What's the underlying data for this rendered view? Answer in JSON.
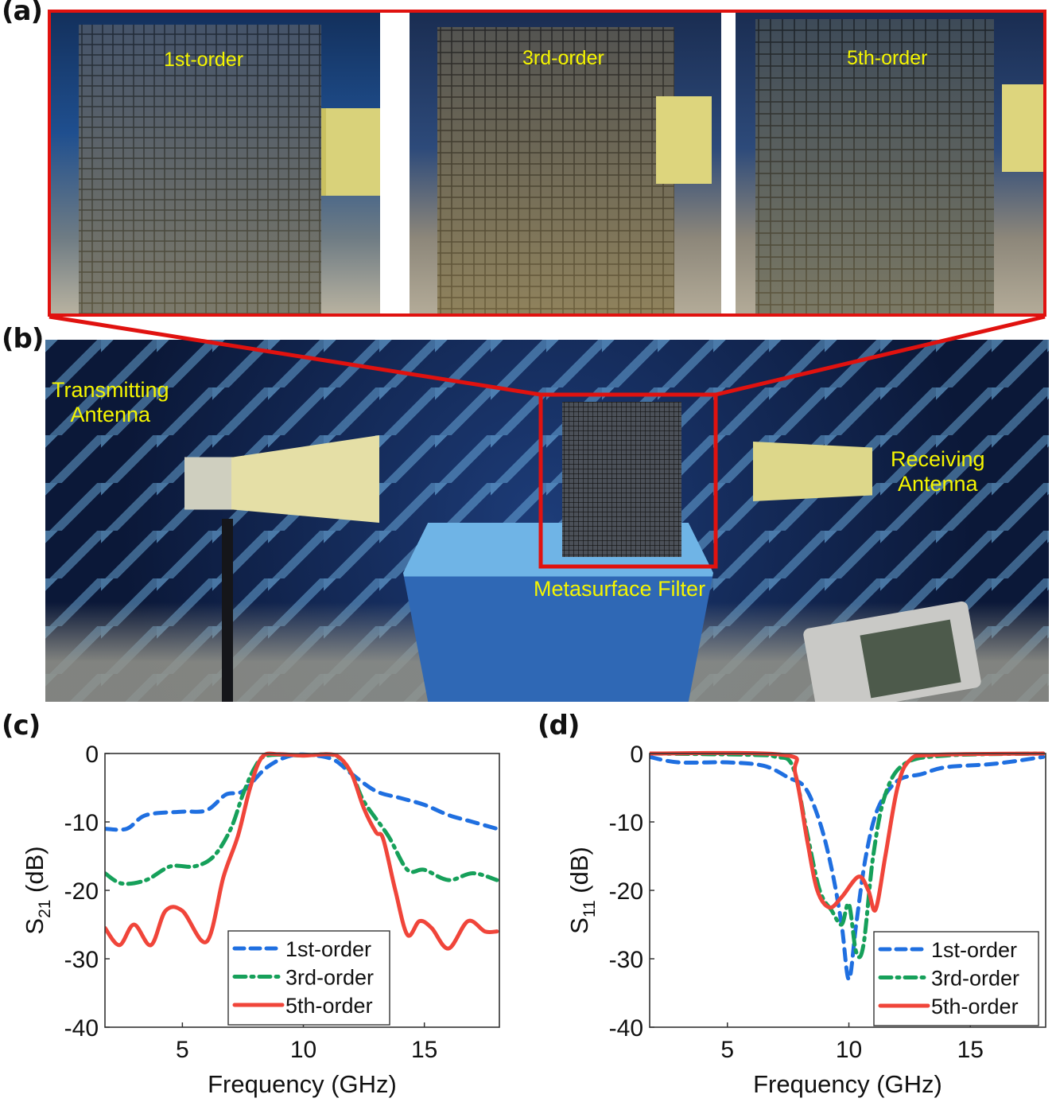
{
  "panels": {
    "a": {
      "label": "(a)",
      "samples": [
        {
          "caption": "1st-order"
        },
        {
          "caption": "3rd-order"
        },
        {
          "caption": "5th-order"
        }
      ]
    },
    "b": {
      "label": "(b)",
      "transmitting": [
        "Transmitting",
        "Antenna"
      ],
      "receiving": [
        "Receiving",
        "Antenna"
      ],
      "filter": "Metasurface Filter"
    },
    "c": {
      "label": "(c)"
    },
    "d": {
      "label": "(d)"
    }
  },
  "colors": {
    "highlight_red": "#e0120f",
    "caption_yellow": "#f5f500",
    "series_1st": "#1f6fe0",
    "series_3rd": "#16a05a",
    "series_5th": "#f0453a"
  },
  "chart_data": [
    {
      "type": "line",
      "panel": "(c)",
      "title": "",
      "xlabel": "Frequency (GHz)",
      "ylabel": "S21 (dB)",
      "xlim": [
        1.8,
        18.1
      ],
      "ylim": [
        -40,
        0
      ],
      "xticks": [
        5,
        10,
        15
      ],
      "yticks": [
        0,
        -10,
        -20,
        -30,
        -40
      ],
      "grid": false,
      "legend_position": "lower center",
      "series": [
        {
          "name": "1st-order",
          "style": "dashed",
          "x": [
            1.8,
            2.7,
            3.5,
            5,
            6,
            6.8,
            7.5,
            8.5,
            9.5,
            10.5,
            11.3,
            12,
            13,
            14,
            15,
            16,
            17,
            18
          ],
          "y": [
            -11,
            -11,
            -9,
            -8.5,
            -8.3,
            -6,
            -5.5,
            -2,
            -0.3,
            -0.3,
            -1,
            -3,
            -5.5,
            -6.5,
            -7.5,
            -9,
            -10,
            -11
          ]
        },
        {
          "name": "3rd-order",
          "style": "dash-dot",
          "x": [
            1.8,
            2.5,
            3.5,
            4.5,
            5.5,
            6.3,
            7,
            7.5,
            8,
            8.5,
            10,
            11.3,
            12,
            12.5,
            13.5,
            14.3,
            15,
            16,
            17,
            18
          ],
          "y": [
            -17.5,
            -19,
            -18.5,
            -16.5,
            -16.5,
            -15,
            -11,
            -6,
            -2,
            -0.3,
            -0.3,
            -0.3,
            -3,
            -7,
            -12,
            -17,
            -17,
            -18.5,
            -17.5,
            -18.5
          ]
        },
        {
          "name": "5th-order",
          "style": "solid",
          "x": [
            1.8,
            2.4,
            3,
            3.7,
            4.3,
            5,
            6,
            6.7,
            7.3,
            7.8,
            8.3,
            9,
            10,
            11,
            11.5,
            12,
            12.5,
            13,
            13.3,
            13.8,
            14.3,
            14.8,
            15.3,
            16,
            16.8,
            17.5,
            18
          ],
          "y": [
            -25.5,
            -28,
            -25,
            -28,
            -23,
            -23,
            -27.5,
            -18,
            -12,
            -5,
            -0.5,
            -0.1,
            -0.3,
            -0.1,
            -0.6,
            -3,
            -8,
            -11.5,
            -12.5,
            -20,
            -26.5,
            -24.5,
            -25.5,
            -28.5,
            -24.5,
            -26,
            -26
          ]
        }
      ]
    },
    {
      "type": "line",
      "panel": "(d)",
      "title": "",
      "xlabel": "Frequency (GHz)",
      "ylabel": "S11 (dB)",
      "xlim": [
        1.8,
        18.1
      ],
      "ylim": [
        -40,
        0
      ],
      "xticks": [
        5,
        10,
        15
      ],
      "yticks": [
        0,
        -10,
        -20,
        -30,
        -40
      ],
      "grid": false,
      "legend_position": "lower right",
      "series": [
        {
          "name": "1st-order",
          "style": "dashed",
          "x": [
            1.8,
            3,
            5,
            6.5,
            7.5,
            8.2,
            8.8,
            9.3,
            9.7,
            10,
            10.3,
            10.7,
            11.2,
            12,
            13,
            14,
            16,
            18
          ],
          "y": [
            -0.5,
            -1.3,
            -1.3,
            -1.8,
            -3.5,
            -5,
            -10,
            -17,
            -25,
            -33,
            -25,
            -15,
            -8,
            -4,
            -3,
            -2,
            -1.5,
            -0.5
          ]
        },
        {
          "name": "3rd-order",
          "style": "dash-dot",
          "x": [
            1.8,
            6,
            7,
            7.7,
            8.3,
            8.8,
            9.3,
            9.7,
            10,
            10.3,
            10.6,
            11,
            11.5,
            12.3,
            14,
            18
          ],
          "y": [
            0,
            -0.2,
            -0.5,
            -2,
            -12,
            -20,
            -23,
            -25,
            -22,
            -29,
            -28,
            -15,
            -6,
            -1.5,
            -0.3,
            0
          ]
        },
        {
          "name": "5th-order",
          "style": "solid",
          "x": [
            1.8,
            7.3,
            7.8,
            8.3,
            8.7,
            9.2,
            9.7,
            10.4,
            10.8,
            11.1,
            11.5,
            12,
            12.5,
            13.5,
            18
          ],
          "y": [
            0,
            -0.2,
            -3,
            -13,
            -20,
            -22.5,
            -21,
            -18,
            -20,
            -22.8,
            -15,
            -5,
            -1,
            -0.2,
            0
          ]
        }
      ]
    }
  ]
}
